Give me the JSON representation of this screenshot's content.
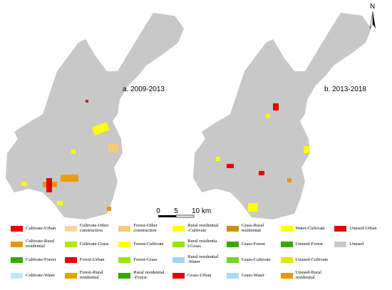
{
  "panels": [
    {
      "label": "a. 2009-2013"
    },
    {
      "label": "b. 2013-2018"
    }
  ],
  "north": "N",
  "scale_bar": {
    "labels": [
      "0",
      "5",
      "10 km"
    ]
  },
  "legend": [
    {
      "label": "Cultivate-Urban",
      "color": "#e60000"
    },
    {
      "label": "Cultivate-Rural\nresidential",
      "color": "#e69800"
    },
    {
      "label": "Cultivate-Forest",
      "color": "#38a800"
    },
    {
      "label": "Cultivate-Water",
      "color": "#bee8ff"
    },
    {
      "label": "Cultivate-Other\nconstruction",
      "color": "#fcd59a"
    },
    {
      "label": "Cultivate-Grass",
      "color": "#b4e61e"
    },
    {
      "label": "Forest-Urban",
      "color": "#e60000"
    },
    {
      "label": "Forest-Rural\nresidential",
      "color": "#e6a000"
    },
    {
      "label": "Forest-Other\nconstruction",
      "color": "#f5ca7a"
    },
    {
      "label": "Forest-Cultivate",
      "color": "#ffff00"
    },
    {
      "label": "Forest-Grass",
      "color": "#98e600"
    },
    {
      "label": "Rural residential\n-Forest",
      "color": "#38a800"
    },
    {
      "label": "Rural residential\n-Cultivate",
      "color": "#ffff00"
    },
    {
      "label": "Rural residentia\nl-Grass",
      "color": "#98e600"
    },
    {
      "label": "Rural residential\n-Water",
      "color": "#9fd7f0"
    },
    {
      "label": "Grass-Urban",
      "color": "#e60000"
    },
    {
      "label": "Grass-Rural\nresidential",
      "color": "#d28c00"
    },
    {
      "label": "Grass-Forest",
      "color": "#38a800"
    },
    {
      "label": "Grass-Cultivate",
      "color": "#70d820"
    },
    {
      "label": "Grass-Water",
      "color": "#a6dcf0"
    },
    {
      "label": "Water-Cultivate",
      "color": "#ffff00"
    },
    {
      "label": "Unused-Forest",
      "color": "#38a800"
    },
    {
      "label": "Unused-Cultivate",
      "color": "#e6e600"
    },
    {
      "label": "Unused-Rural\nresidential",
      "color": "#e69800"
    },
    {
      "label": "Unused-Urban",
      "color": "#e00000"
    },
    {
      "label": "Unused",
      "color": "#c8c8c8"
    }
  ]
}
